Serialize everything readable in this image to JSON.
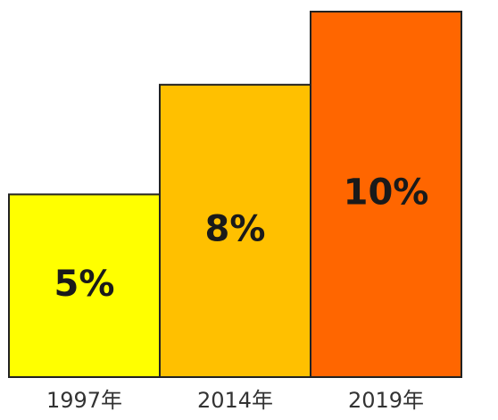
{
  "chart_data": {
    "type": "bar",
    "categories": [
      "1997年",
      "2014年",
      "2019年"
    ],
    "values": [
      5,
      8,
      10
    ],
    "value_labels": [
      "5%",
      "8%",
      "10%"
    ],
    "colors": [
      "#ffff00",
      "#ffc000",
      "#ff6600"
    ]
  }
}
